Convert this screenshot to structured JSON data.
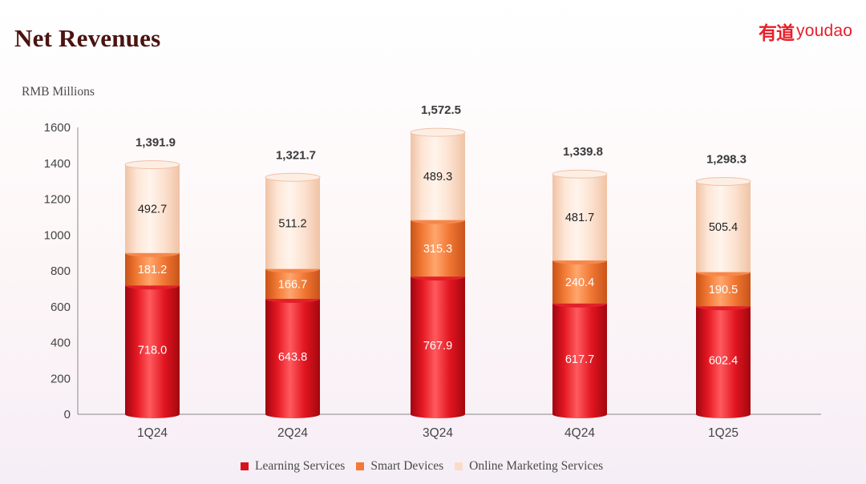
{
  "page": {
    "title": "Net Revenues",
    "logo_cn": "有道",
    "logo_en": "youdao"
  },
  "colors": {
    "learning": "#d9111d",
    "smart": "#f27a35",
    "online": "#fbdcca",
    "title": "#4a1410",
    "brand": "#e8202a"
  },
  "chart_data": {
    "type": "bar",
    "stacked": true,
    "title": "",
    "xlabel": "",
    "ylabel": "RMB Millions",
    "ylim": [
      0,
      1600
    ],
    "yticks": [
      0,
      200,
      400,
      600,
      800,
      1000,
      1200,
      1400,
      1600
    ],
    "categories": [
      "1Q24",
      "2Q24",
      "3Q24",
      "4Q24",
      "1Q25"
    ],
    "series": [
      {
        "name": "Learning Services",
        "color": "#d9111d",
        "values": [
          718.0,
          643.8,
          767.9,
          617.7,
          602.4
        ],
        "labels": [
          "718.0",
          "643.8",
          "767.9",
          "617.7",
          "602.4"
        ]
      },
      {
        "name": "Smart Devices",
        "color": "#f27a35",
        "values": [
          181.2,
          166.7,
          315.3,
          240.4,
          190.5
        ],
        "labels": [
          "181.2",
          "166.7",
          "315.3",
          "240.4",
          "190.5"
        ]
      },
      {
        "name": "Online Marketing Services",
        "color": "#fbdcca",
        "values": [
          492.7,
          511.2,
          489.3,
          481.7,
          505.4
        ],
        "labels": [
          "492.7",
          "511.2",
          "489.3",
          "481.7",
          "505.4"
        ]
      }
    ],
    "totals": [
      "1,391.9",
      "1,321.7",
      "1,572.5",
      "1,339.8",
      "1,298.3"
    ],
    "grid": false,
    "legend_position": "bottom"
  }
}
